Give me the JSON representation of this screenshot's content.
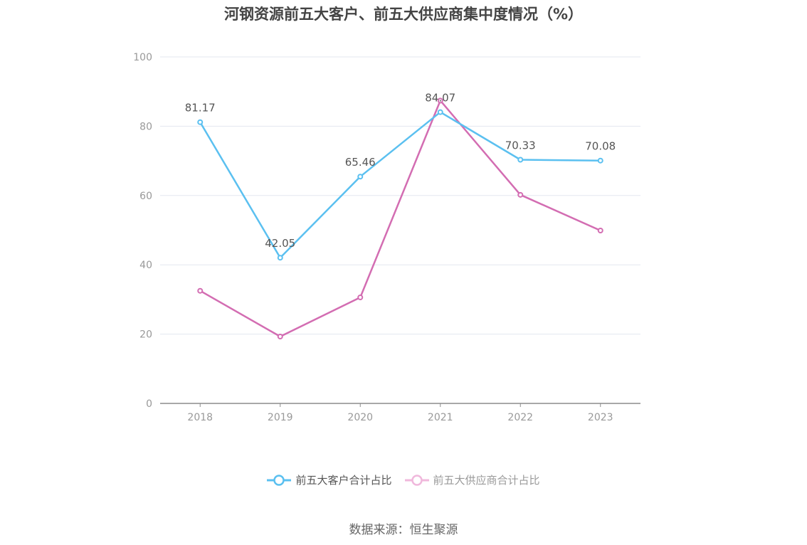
{
  "chart_data": {
    "type": "line",
    "title": "河钢资源前五大客户、前五大供应商集中度情况（%）",
    "categories": [
      "2018",
      "2019",
      "2020",
      "2021",
      "2022",
      "2023"
    ],
    "yticks": [
      "0",
      "20",
      "40",
      "60",
      "80",
      "100"
    ],
    "ylim": [
      0,
      100
    ],
    "grid": true,
    "legend_position": "bottom",
    "series": [
      {
        "name": "前五大客户合计占比",
        "color": "#5bc0f0",
        "values": [
          81.17,
          42.05,
          65.46,
          84.07,
          70.33,
          70.08
        ],
        "labels": [
          "81.17",
          "42.05",
          "65.46",
          "84.07",
          "70.33",
          "70.08"
        ]
      },
      {
        "name": "前五大供应商合计占比",
        "color": "#d36db2",
        "values": [
          32.5,
          19.3,
          30.6,
          87.4,
          60.2,
          49.9
        ]
      }
    ]
  },
  "legend_colors": {
    "supplier_inactive": "#f0b8dc"
  },
  "source": "数据来源：恒生聚源"
}
